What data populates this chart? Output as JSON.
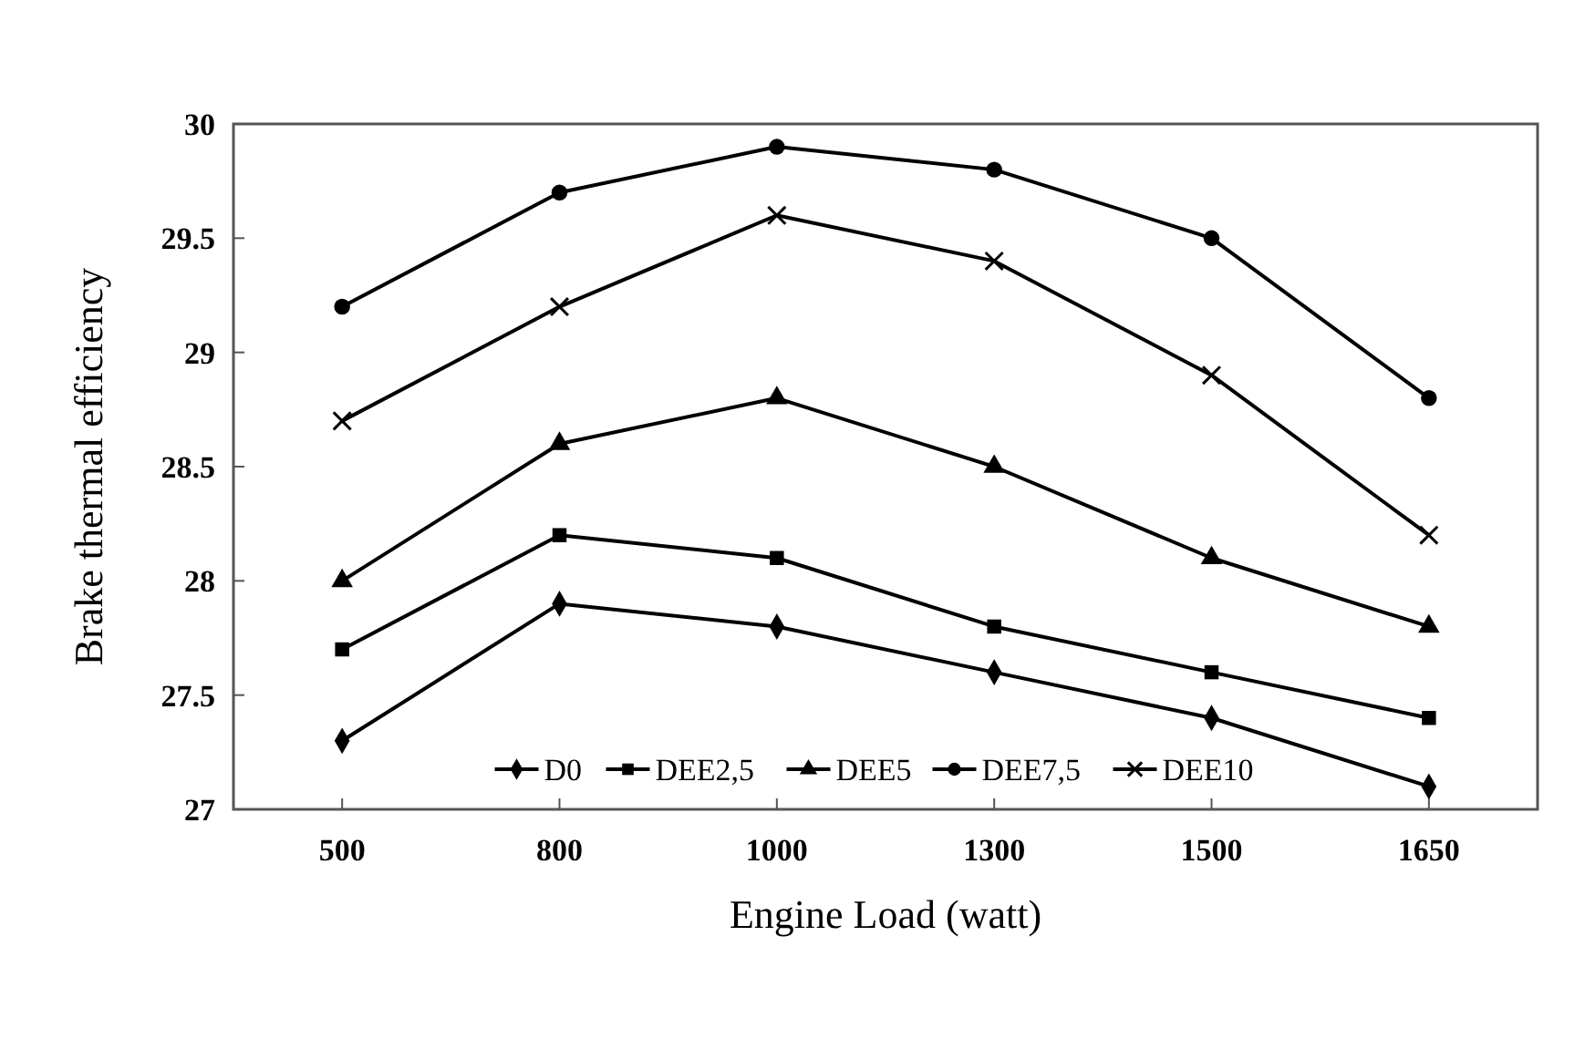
{
  "chart_data": {
    "type": "line",
    "xlabel": "Engine Load (watt)",
    "ylabel": "Brake thermal efficiency",
    "categories": [
      "500",
      "800",
      "1000",
      "1300",
      "1500",
      "1650"
    ],
    "ylim": [
      27,
      30
    ],
    "yticks": [
      27,
      27.5,
      28,
      28.5,
      29,
      29.5,
      30
    ],
    "grid": false,
    "legend": "bottom",
    "line_style": "solid",
    "series": [
      {
        "name": "D0",
        "color": "#000000",
        "marker": "diamond",
        "values": [
          27.3,
          27.9,
          27.8,
          27.6,
          27.4,
          27.1
        ]
      },
      {
        "name": "DEE2,5",
        "color": "#000000",
        "marker": "square",
        "values": [
          27.7,
          28.2,
          28.1,
          27.8,
          27.6,
          27.4
        ]
      },
      {
        "name": "DEE5",
        "color": "#000000",
        "marker": "triangle",
        "values": [
          28.0,
          28.6,
          28.8,
          28.5,
          28.1,
          27.8
        ]
      },
      {
        "name": "DEE7,5",
        "color": "#000000",
        "marker": "circle",
        "values": [
          29.2,
          29.7,
          29.9,
          29.8,
          29.5,
          28.8
        ]
      },
      {
        "name": "DEE10",
        "color": "#000000",
        "marker": "cross",
        "values": [
          28.7,
          29.2,
          29.6,
          29.4,
          28.9,
          28.2
        ]
      }
    ]
  }
}
